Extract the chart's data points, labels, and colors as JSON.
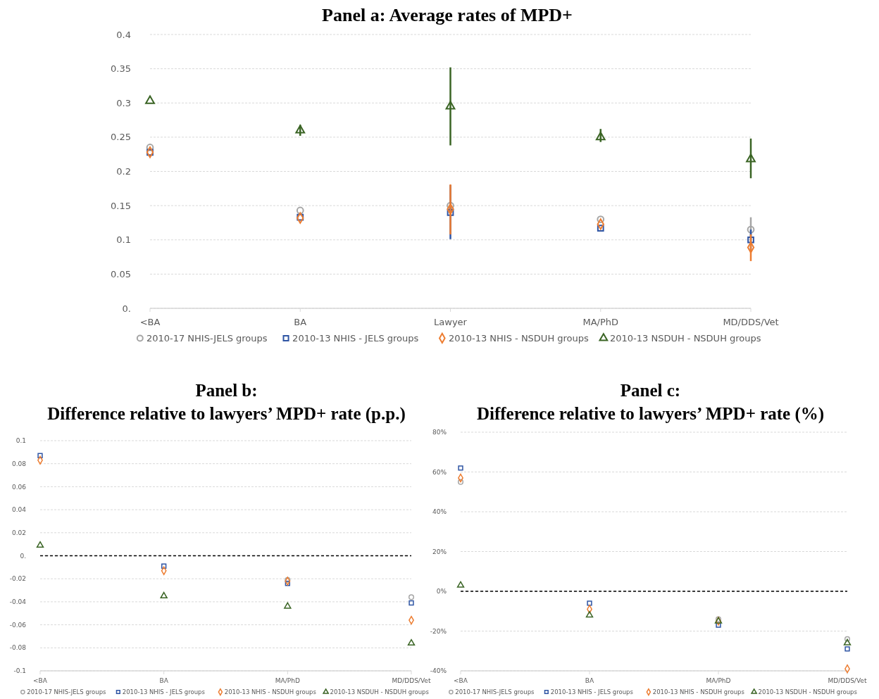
{
  "chart_data": [
    {
      "type": "scatter",
      "title": "Panel a: Average rates of MPD+",
      "categories": [
        "<BA",
        "BA",
        "Lawyer",
        "MA/PhD",
        "MD/DDS/Vet"
      ],
      "ylim": [
        0,
        0.4
      ],
      "yticks": [
        {
          "value": 0,
          "label": "0."
        },
        0.05,
        0.1,
        0.15,
        0.2,
        0.25,
        0.3,
        0.35,
        0.4
      ],
      "grid": "y",
      "legend": "bottom",
      "series": [
        {
          "name": "2010-17 NHIS-JELS groups",
          "color": "#a5a5a5",
          "marker": "circle",
          "values": [
            0.235,
            0.143,
            0.15,
            0.13,
            0.115
          ],
          "errors": [
            null,
            null,
            null,
            null,
            [
              0.1,
              0.133
            ]
          ]
        },
        {
          "name": "2010-13 NHIS - JELS groups",
          "color": "#2f55a4",
          "marker": "square",
          "values": [
            0.228,
            0.133,
            0.14,
            0.117,
            0.1
          ],
          "errors": [
            null,
            null,
            [
              0.101,
              0.18
            ],
            null,
            [
              0.085,
              0.115
            ]
          ]
        },
        {
          "name": "2010-13 NHIS - NSDUH groups",
          "color": "#ed7d31",
          "marker": "diamond",
          "values": [
            0.228,
            0.132,
            0.145,
            0.123,
            0.089
          ],
          "errors": [
            null,
            null,
            [
              0.108,
              0.181
            ],
            null,
            [
              0.069,
              0.108
            ]
          ]
        },
        {
          "name": "2010-13 NSDUH - NSDUH groups",
          "color": "#3a6424",
          "marker": "triangle",
          "values": [
            0.303,
            0.26,
            0.295,
            0.25,
            0.218
          ],
          "errors": [
            null,
            [
              0.252,
              0.268
            ],
            [
              0.238,
              0.352
            ],
            [
              0.243,
              0.262
            ],
            [
              0.19,
              0.248
            ]
          ]
        }
      ]
    },
    {
      "type": "scatter",
      "title": "Panel b:",
      "subtitle": "Difference relative to lawyers’ MPD+ rate (p.p.)",
      "categories": [
        "<BA",
        "BA",
        "MA/PhD",
        "MD/DDS/Vet"
      ],
      "ylim": [
        -0.1,
        0.1
      ],
      "yticks": [
        -0.1,
        -0.08,
        -0.06,
        -0.04,
        -0.02,
        {
          "value": 0,
          "label": "0."
        },
        0.02,
        0.04,
        0.06,
        0.08,
        0.1
      ],
      "grid": "y",
      "legend": "bottom",
      "ref_lines": [
        {
          "axis": "y",
          "value": 0,
          "color": "#000000",
          "line_style": "dashed"
        }
      ],
      "series": [
        {
          "name": "2010-17 NHIS-JELS groups",
          "color": "#a5a5a5",
          "marker": "circle",
          "values": [
            null,
            null,
            -0.021,
            -0.036
          ]
        },
        {
          "name": "2010-13 NHIS - JELS groups",
          "color": "#2f55a4",
          "marker": "square",
          "values": [
            0.087,
            -0.009,
            -0.024,
            -0.041
          ]
        },
        {
          "name": "2010-13 NHIS - NSDUH groups",
          "color": "#ed7d31",
          "marker": "diamond",
          "values": [
            0.083,
            -0.013,
            -0.022,
            -0.056
          ]
        },
        {
          "name": "2010-13 NSDUH - NSDUH groups",
          "color": "#3a6424",
          "marker": "triangle",
          "values": [
            0.009,
            -0.035,
            -0.044,
            -0.076
          ]
        }
      ]
    },
    {
      "type": "scatter",
      "title": "Panel c:",
      "subtitle": "Difference relative to lawyers’ MPD+ rate (%)",
      "categories": [
        "<BA",
        "BA",
        "MA/PhD",
        "MD/DDS/Vet"
      ],
      "ylim": [
        -40,
        80
      ],
      "yticks": [
        {
          "value": -40,
          "label": "-40%"
        },
        {
          "value": -20,
          "label": "-20%"
        },
        {
          "value": 0,
          "label": "0%"
        },
        {
          "value": 20,
          "label": "20%"
        },
        {
          "value": 40,
          "label": "40%"
        },
        {
          "value": 60,
          "label": "60%"
        },
        {
          "value": 80,
          "label": "80%"
        }
      ],
      "grid": "y",
      "legend": "bottom",
      "ref_lines": [
        {
          "axis": "y",
          "value": 0,
          "color": "#000000",
          "line_style": "dashed"
        }
      ],
      "series": [
        {
          "name": "2010-17 NHIS-JELS groups",
          "color": "#a5a5a5",
          "marker": "circle",
          "values": [
            55,
            null,
            -14,
            -24
          ]
        },
        {
          "name": "2010-13 NHIS - JELS groups",
          "color": "#2f55a4",
          "marker": "square",
          "values": [
            62,
            -6,
            -17,
            -29
          ]
        },
        {
          "name": "2010-13 NHIS - NSDUH groups",
          "color": "#ed7d31",
          "marker": "diamond",
          "values": [
            57,
            -9,
            -15,
            -39
          ]
        },
        {
          "name": "2010-13 NSDUH - NSDUH groups",
          "color": "#3a6424",
          "marker": "triangle",
          "values": [
            3,
            -12,
            -15,
            -26
          ]
        }
      ]
    }
  ]
}
